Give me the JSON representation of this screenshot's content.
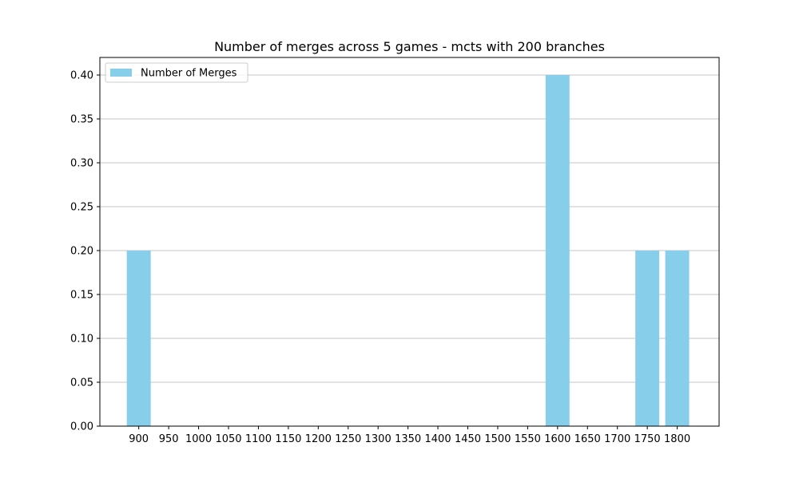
{
  "chart_data": {
    "type": "bar",
    "title": "Number of merges across 5 games - mcts with 200 branches",
    "xlabel": "",
    "ylabel": "",
    "x": [
      900,
      1600,
      1750,
      1800
    ],
    "series": [
      {
        "name": "Number of Merges",
        "values": [
          0.2,
          0.4,
          0.2,
          0.2
        ]
      }
    ],
    "bar_width": 40,
    "x_ticks": [
      900,
      950,
      1000,
      1050,
      1100,
      1150,
      1200,
      1250,
      1300,
      1350,
      1400,
      1450,
      1500,
      1550,
      1600,
      1650,
      1700,
      1750,
      1800
    ],
    "y_ticks": [
      0.0,
      0.05,
      0.1,
      0.15,
      0.2,
      0.25,
      0.3,
      0.35,
      0.4
    ],
    "y_tick_labels": [
      "0.00",
      "0.05",
      "0.10",
      "0.15",
      "0.20",
      "0.25",
      "0.30",
      "0.35",
      "0.40"
    ],
    "xlim": [
      835,
      1870
    ],
    "ylim": [
      0,
      0.42
    ],
    "grid": "y",
    "legend_position": "upper-left",
    "colors": {
      "bar": "#87ceeb",
      "grid": "#b0b0b0",
      "axis": "#000000"
    }
  }
}
